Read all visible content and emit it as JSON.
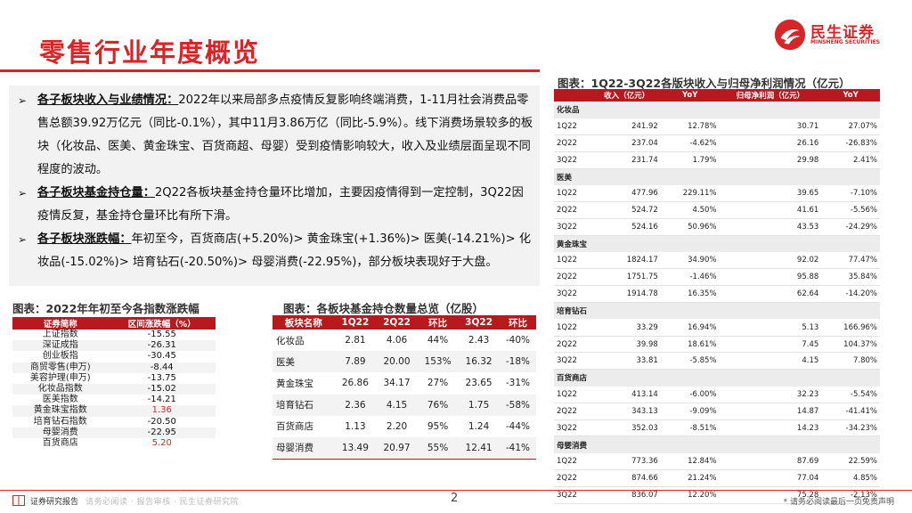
{
  "header": {
    "title": "零售行业年度概览",
    "logo_name": "民生证券",
    "logo_sub": "MINSHENG SECURITIES"
  },
  "bullets": [
    {
      "head": "各子板块收入与业绩情况",
      "sep": "：",
      "body": "2022年以来局部多点疫情反复影响终端消费，1-11月社会消费品零售总额39.92万亿元（同比-0.1%），其中11月3.86万亿（同比-5.9%）。线下消费场景较多的板块（化妆品、医美、黄金珠宝、百货商超、母婴）受到疫情影响较大，收入及业绩层面呈现不同程度的波动。"
    },
    {
      "head": "各子板块基金持仓量",
      "sep": "：",
      "body": "2Q22各板块基金持仓量环比增加，主要因疫情得到一定控制，3Q22因疫情反复，基金持仓量环比有所下滑。"
    },
    {
      "head": "各子板块涨跌幅",
      "sep": "：",
      "body": "年初至今，百货商店(+5.20%)> 黄金珠宝(+1.36%)> 医美(-14.21%)> 化妆品(-15.02%)> 培育钻石(-20.50%)> 母婴消费(-22.95%)，部分板块表现好于大盘。"
    }
  ],
  "left_table": {
    "caption": "图表：2022年年初至今各指数涨跌幅",
    "headers": [
      "证券简称",
      "区间涨跌幅（%）"
    ],
    "rows": [
      {
        "name": "上证指数",
        "value": "-15.55",
        "pos": false
      },
      {
        "name": "深证成指",
        "value": "-26.31",
        "pos": false
      },
      {
        "name": "创业板指",
        "value": "-30.45",
        "pos": false
      },
      {
        "name": "商贸零售(申万)",
        "value": "-8.44",
        "pos": false
      },
      {
        "name": "美容护理(申万)",
        "value": "-13.75",
        "pos": false
      },
      {
        "name": "化妆品指数",
        "value": "-15.02",
        "pos": false
      },
      {
        "name": "医美指数",
        "value": "-14.21",
        "pos": false
      },
      {
        "name": "黄金珠宝指数",
        "value": "1.36",
        "pos": true
      },
      {
        "name": "培育钻石指数",
        "value": "-20.50",
        "pos": false
      },
      {
        "name": "母婴消费",
        "value": "-22.95",
        "pos": false
      },
      {
        "name": "百货商店",
        "value": "5.20",
        "pos": true
      }
    ]
  },
  "mid_table": {
    "caption": "图表：各板块基金持仓数量总览（亿股）",
    "headers": [
      "板块名称",
      "1Q22",
      "2Q22",
      "环比",
      "3Q22",
      "环比"
    ],
    "rows": [
      [
        "化妆品",
        "2.81",
        "4.06",
        "44%",
        "2.43",
        "-40%"
      ],
      [
        "医美",
        "7.89",
        "20.00",
        "153%",
        "16.32",
        "-18%"
      ],
      [
        "黄金珠宝",
        "26.86",
        "34.17",
        "27%",
        "23.65",
        "-31%"
      ],
      [
        "培育钻石",
        "2.36",
        "4.15",
        "76%",
        "1.75",
        "-58%"
      ],
      [
        "百货商店",
        "1.13",
        "2.20",
        "95%",
        "1.24",
        "-44%"
      ],
      [
        "母婴消费",
        "13.49",
        "20.97",
        "55%",
        "12.41",
        "-41%"
      ]
    ]
  },
  "right_table": {
    "caption": "图表：1Q22-3Q22各版块收入与归母净利润情况（亿元）",
    "headers": [
      "",
      "收入（亿元）",
      "YoY",
      "归母净利润（亿元）",
      "YoY"
    ],
    "groups": [
      {
        "name": "化妆品",
        "rows": [
          [
            "1Q22",
            "241.92",
            "12.78%",
            "30.71",
            "27.07%"
          ],
          [
            "2Q22",
            "237.04",
            "-4.62%",
            "26.16",
            "-26.83%"
          ],
          [
            "3Q22",
            "231.74",
            "1.79%",
            "29.98",
            "2.41%"
          ]
        ]
      },
      {
        "name": "医美",
        "rows": [
          [
            "1Q22",
            "477.96",
            "229.11%",
            "39.65",
            "-7.10%"
          ],
          [
            "2Q22",
            "524.72",
            "4.50%",
            "41.61",
            "-5.56%"
          ],
          [
            "3Q22",
            "524.16",
            "50.96%",
            "43.53",
            "-24.29%"
          ]
        ]
      },
      {
        "name": "黄金珠宝",
        "rows": [
          [
            "1Q22",
            "1824.17",
            "34.90%",
            "92.02",
            "77.47%"
          ],
          [
            "2Q22",
            "1751.75",
            "-1.46%",
            "95.88",
            "35.84%"
          ],
          [
            "3Q22",
            "1914.78",
            "16.35%",
            "62.64",
            "-14.20%"
          ]
        ]
      },
      {
        "name": "培育钻石",
        "rows": [
          [
            "1Q22",
            "33.29",
            "16.94%",
            "5.13",
            "166.96%"
          ],
          [
            "2Q22",
            "39.98",
            "18.61%",
            "7.45",
            "104.37%"
          ],
          [
            "3Q22",
            "33.81",
            "-5.85%",
            "4.15",
            "7.80%"
          ]
        ]
      },
      {
        "name": "百货商店",
        "rows": [
          [
            "1Q22",
            "413.14",
            "-6.00%",
            "32.23",
            "-5.54%"
          ],
          [
            "2Q22",
            "343.13",
            "-9.09%",
            "14.87",
            "-41.41%"
          ],
          [
            "3Q22",
            "352.03",
            "-8.51%",
            "14.23",
            "-34.23%"
          ]
        ]
      },
      {
        "name": "母婴消费",
        "rows": [
          [
            "1Q22",
            "773.36",
            "12.84%",
            "87.69",
            "22.59%"
          ],
          [
            "2Q22",
            "874.66",
            "21.24%",
            "77.04",
            "4.85%"
          ],
          [
            "3Q22",
            "836.07",
            "12.20%",
            "75.28",
            "-2.13%"
          ]
        ]
      }
    ]
  },
  "footer": {
    "brand": "证券研究报告",
    "faint": "请务必阅读  ·  报告审核  ·  民生证券研究院",
    "page": "2",
    "disclaimer": "* 请务必阅读最后一页免责声明"
  },
  "colors": {
    "accent": "#d7262a",
    "table_header": "#b8191f"
  },
  "icons": {
    "logo": "minsheng-logo-icon",
    "footer": "book-icon",
    "bullet": "arrow-bullet-icon"
  }
}
